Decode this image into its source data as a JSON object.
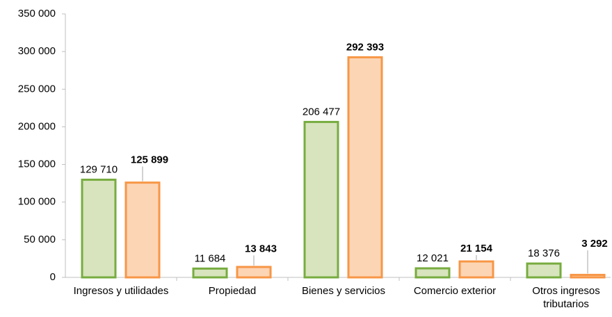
{
  "chart_data": {
    "type": "bar",
    "categories": [
      "Ingresos y utilidades",
      "Propiedad",
      "Bienes y servicios",
      "Comercio exterior",
      "Otros ingresos tributarios"
    ],
    "series": [
      {
        "color": "#77ac3f",
        "fill": "#d7e4bd",
        "values": [
          129710,
          11684,
          206477,
          12021,
          18376
        ],
        "value_labels": [
          "129 710",
          "11 684",
          "206 477",
          "12 021",
          "18 376"
        ]
      },
      {
        "color": "#f79646",
        "fill": "#fcd5b5",
        "values": [
          125899,
          13843,
          292393,
          21154,
          3292
        ],
        "value_labels": [
          "125 899",
          "13 843",
          "292 393",
          "21 154",
          "3 292"
        ],
        "bold_labels": true
      }
    ],
    "ylim": [
      0,
      350000
    ],
    "yticks": [
      0,
      {
        "value": 50000,
        "label": "50 000"
      },
      {
        "value": 100000,
        "label": "100 000"
      },
      {
        "value": 150000,
        "label": "150 000"
      },
      {
        "value": 200000,
        "label": "200 000"
      },
      {
        "value": 250000,
        "label": "250 000"
      },
      {
        "value": 300000,
        "label": "300 000"
      },
      {
        "value": 350000,
        "label": "350 000"
      }
    ],
    "grid": false
  }
}
